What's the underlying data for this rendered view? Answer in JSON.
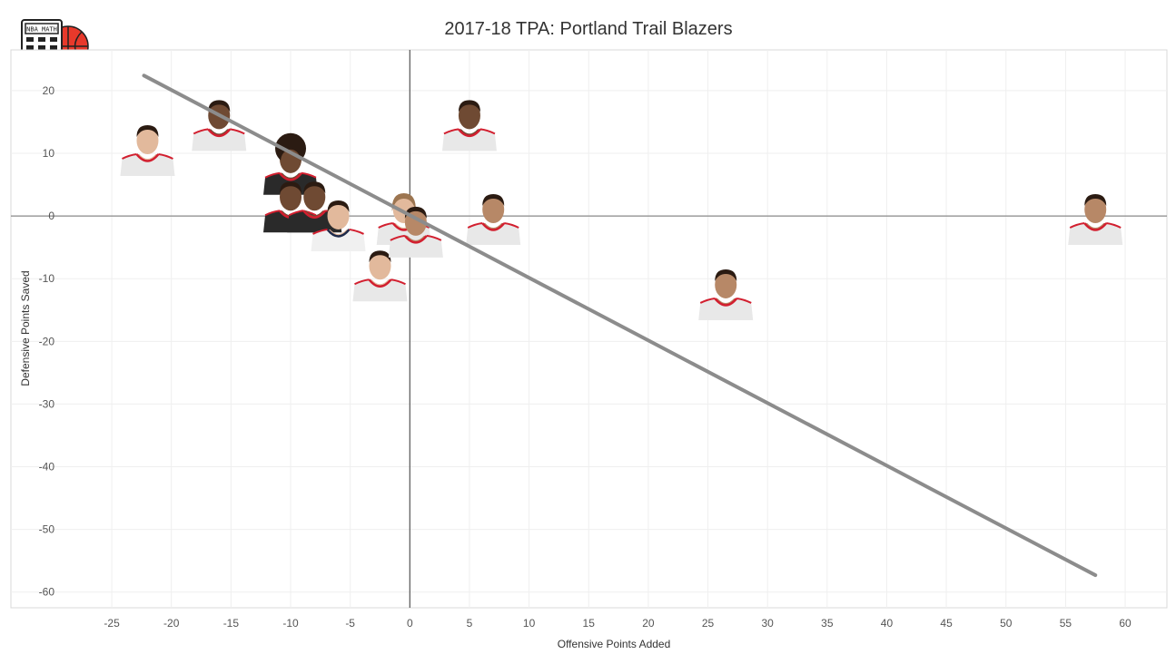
{
  "logo": {
    "text": "NBA MATH",
    "ball_color": "#e8392b"
  },
  "colors": {
    "trend": "#8c8c8c",
    "jersey": "#e8e8e8",
    "trim": "#d21f2f",
    "jersey_dark": "#2a2a2a",
    "skin": "#b9886a",
    "hair": "#2b1b12"
  },
  "chart_data": {
    "type": "scatter",
    "title": "2017-18 TPA: Portland Trail Blazers",
    "xlabel": "Offensive Points Added",
    "ylabel": "Defensive Points Saved",
    "xlim": [
      -29.5,
      63.5
    ],
    "ylim": [
      -62.5,
      26.5
    ],
    "xticks": [
      -25,
      -20,
      -15,
      -10,
      -5,
      0,
      5,
      10,
      15,
      20,
      25,
      30,
      35,
      40,
      45,
      50,
      55,
      60
    ],
    "yticks": [
      20,
      10,
      0,
      -10,
      -20,
      -30,
      -40,
      -50,
      -60
    ],
    "grid": true,
    "reference_lines": {
      "x": 0,
      "y": 0
    },
    "trend_line": {
      "x": [
        -22.3,
        57.5
      ],
      "y": [
        22.4,
        -57.3
      ]
    },
    "series": [
      {
        "name": "Players",
        "points": [
          {
            "x": -22,
            "y": 10,
            "tone": "light",
            "hair": "short"
          },
          {
            "x": -16,
            "y": 14,
            "tone": "dark",
            "hair": "short"
          },
          {
            "x": -10,
            "y": 7,
            "tone": "dark",
            "hair": "afro",
            "jersey": "dark"
          },
          {
            "x": -10,
            "y": 1,
            "tone": "dark",
            "hair": "short",
            "jersey": "dark"
          },
          {
            "x": -8,
            "y": 1,
            "tone": "dark",
            "hair": "short",
            "jersey": "dark"
          },
          {
            "x": -6,
            "y": -2,
            "tone": "light",
            "hair": "short",
            "jersey": "navy"
          },
          {
            "x": -2.5,
            "y": -10,
            "tone": "light",
            "hair": "short"
          },
          {
            "x": -0.5,
            "y": -1,
            "tone": "light",
            "hair": "long"
          },
          {
            "x": 0.5,
            "y": -3,
            "tone": "medium",
            "hair": "short"
          },
          {
            "x": 5,
            "y": 14,
            "tone": "dark",
            "hair": "short"
          },
          {
            "x": 7,
            "y": -1,
            "tone": "medium",
            "hair": "short"
          },
          {
            "x": 26.5,
            "y": -13,
            "tone": "medium",
            "hair": "short"
          },
          {
            "x": 57.5,
            "y": -1,
            "tone": "medium",
            "hair": "short"
          }
        ]
      }
    ]
  }
}
